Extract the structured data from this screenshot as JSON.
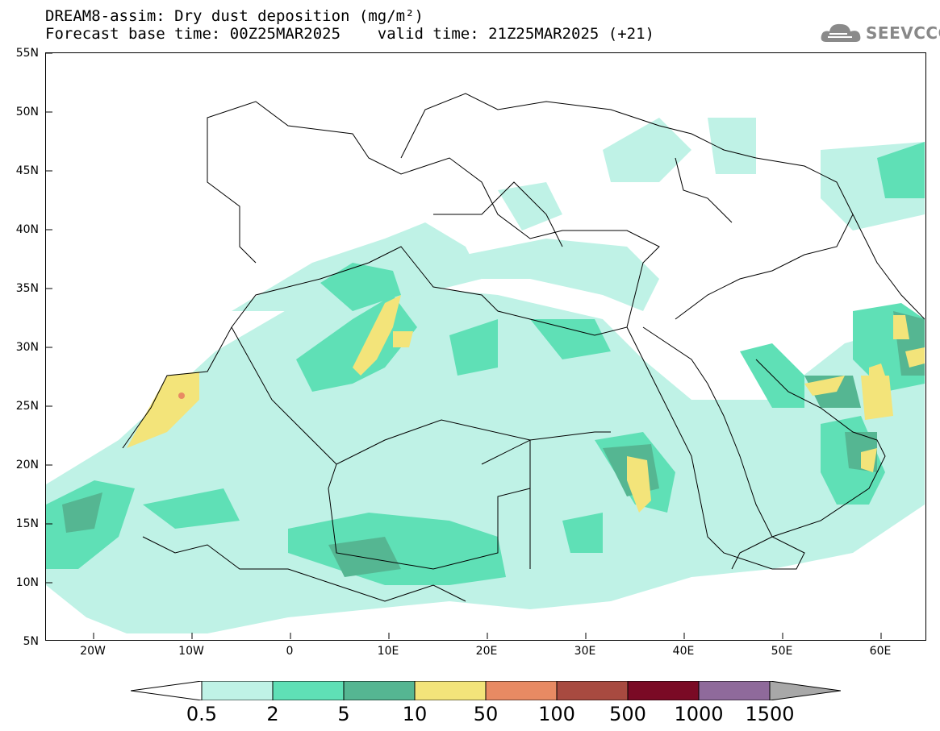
{
  "header": {
    "line1": "DREAM8-assim: Dry dust deposition (mg/m²)",
    "line2": "Forecast base time: 00Z25MAR2025    valid time: 21Z25MAR2025 (+21)"
  },
  "logo": {
    "text": "SEEVCCC",
    "icon": "cloud-icon"
  },
  "map": {
    "latitude_labels": [
      "55N",
      "50N",
      "45N",
      "40N",
      "35N",
      "30N",
      "25N",
      "20N",
      "15N",
      "10N",
      "5N"
    ],
    "longitude_labels": [
      "20W",
      "10W",
      "0",
      "10E",
      "20E",
      "30E",
      "40E",
      "50E",
      "60E"
    ],
    "colors": {
      "c1": "#bff2e6",
      "c2": "#5fe0b6",
      "c3": "#55b692",
      "c4": "#f3e47a",
      "c5": "#e88a63",
      "c6": "#a84a40",
      "c7": "#7a0a25",
      "c8": "#8f6a9b",
      "c9": "#a8a8a8",
      "border": "#000000"
    }
  },
  "colorbar": {
    "labels": [
      "0.5",
      "2",
      "5",
      "10",
      "50",
      "100",
      "500",
      "1000",
      "1500"
    ],
    "bins": [
      "#bff2e6",
      "#5fe0b6",
      "#55b692",
      "#f3e47a",
      "#e88a63",
      "#a84a40",
      "#7a0a25",
      "#8f6a9b",
      "#a8a8a8"
    ]
  }
}
